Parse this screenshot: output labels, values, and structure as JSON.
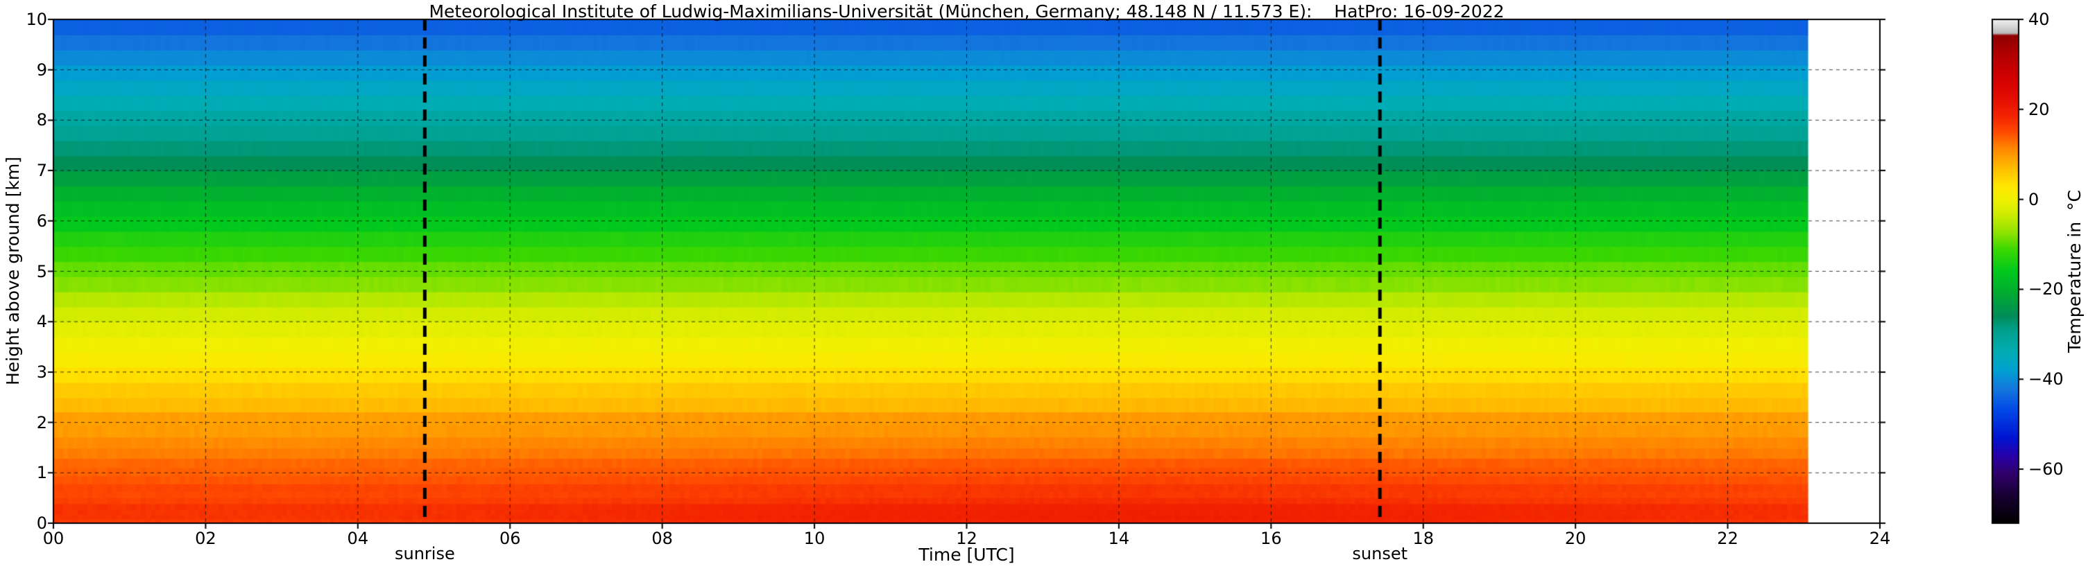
{
  "chart_data": {
    "type": "heatmap",
    "title": "Meteorological Institute of Ludwig-Maximilians-Universität (München, Germany; 48.148 N / 11.573 E):    HatPro: 16-09-2022",
    "xlabel": "Time [UTC]",
    "ylabel": "Height above ground [km]",
    "colorbar_label": "Temperature in  °C",
    "station": {
      "institute": "Meteorological Institute of Ludwig-Maximilians-Universität",
      "location": "München, Germany",
      "latitude": "48.148 N",
      "longitude": "11.573 E",
      "instrument": "HatPro",
      "date": "16-09-2022"
    },
    "x_range": [
      0,
      24
    ],
    "y_range": [
      0,
      10
    ],
    "x_ticks": [
      "00",
      "02",
      "04",
      "06",
      "08",
      "10",
      "12",
      "14",
      "16",
      "18",
      "20",
      "22",
      "24"
    ],
    "x_tick_values": [
      0,
      2,
      4,
      6,
      8,
      10,
      12,
      14,
      16,
      18,
      20,
      22,
      24
    ],
    "y_ticks": [
      "0",
      "1",
      "2",
      "3",
      "4",
      "5",
      "6",
      "7",
      "8",
      "9",
      "10"
    ],
    "y_tick_values": [
      0,
      1,
      2,
      3,
      4,
      5,
      6,
      7,
      8,
      9,
      10
    ],
    "data_end_hour": 23.05,
    "grid": true,
    "annotations": [
      {
        "label": "sunrise",
        "hour": 4.88
      },
      {
        "label": "sunset",
        "hour": 17.43
      }
    ],
    "colorbar": {
      "min": -72,
      "max": 40,
      "ticks": [
        40,
        20,
        0,
        -20,
        -40,
        -60
      ],
      "tick_labels": [
        "40",
        "20",
        "0",
        "−20",
        "−40",
        "−60"
      ],
      "position": "right"
    },
    "colormap_stops": [
      [
        -72,
        "#000000"
      ],
      [
        -66,
        "#160030"
      ],
      [
        -61,
        "#30006a"
      ],
      [
        -57,
        "#2800a8"
      ],
      [
        -53,
        "#0014d2"
      ],
      [
        -47,
        "#0046e6"
      ],
      [
        -42,
        "#1478dc"
      ],
      [
        -38,
        "#00a0d2"
      ],
      [
        -34,
        "#00acb4"
      ],
      [
        -29,
        "#00a08c"
      ],
      [
        -26,
        "#008c5a"
      ],
      [
        -21,
        "#00aa32"
      ],
      [
        -16,
        "#00c81e"
      ],
      [
        -11,
        "#3cd800"
      ],
      [
        -7,
        "#96e400"
      ],
      [
        -3,
        "#d2ec00"
      ],
      [
        0,
        "#f0f000"
      ],
      [
        3,
        "#ffe600"
      ],
      [
        6,
        "#ffc800"
      ],
      [
        9,
        "#ffa500"
      ],
      [
        12,
        "#ff7d00"
      ],
      [
        15,
        "#ff4b00"
      ],
      [
        18,
        "#f52800"
      ],
      [
        22,
        "#e60f00"
      ],
      [
        27,
        "#d20000"
      ],
      [
        32,
        "#b40000"
      ],
      [
        36.5,
        "#8f0000"
      ],
      [
        37,
        "#bbbbbb"
      ],
      [
        40,
        "#f0f0f0"
      ]
    ],
    "profile_heights_km": [
      0,
      0.5,
      1,
      1.5,
      2,
      2.5,
      3,
      3.5,
      4,
      4.5,
      5,
      5.5,
      6,
      6.5,
      7,
      7.5,
      8,
      8.5,
      9,
      9.5,
      10
    ],
    "profile_temps_c": [
      18.5,
      16.8,
      14.5,
      12,
      9.5,
      6.5,
      3.5,
      1,
      -2,
      -5.5,
      -9,
      -12.5,
      -16,
      -19.5,
      -24.5,
      -28,
      -31.5,
      -35,
      -38.5,
      -42,
      -45.5
    ]
  }
}
